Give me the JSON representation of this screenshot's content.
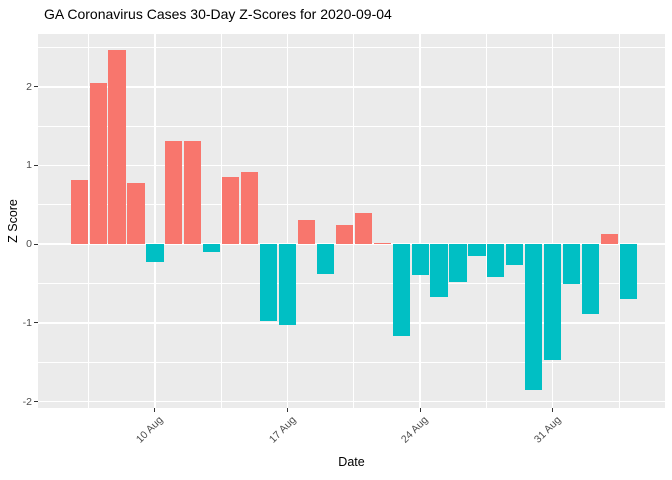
{
  "chart_data": {
    "type": "bar",
    "title": "GA Coronavirus Cases 30-Day Z-Scores for 2020-09-04",
    "xlabel": "Date",
    "ylabel": "Z Score",
    "dates": [
      "2020-08-06",
      "2020-08-07",
      "2020-08-08",
      "2020-08-09",
      "2020-08-10",
      "2020-08-11",
      "2020-08-12",
      "2020-08-13",
      "2020-08-14",
      "2020-08-15",
      "2020-08-16",
      "2020-08-17",
      "2020-08-18",
      "2020-08-19",
      "2020-08-20",
      "2020-08-21",
      "2020-08-22",
      "2020-08-23",
      "2020-08-24",
      "2020-08-25",
      "2020-08-26",
      "2020-08-27",
      "2020-08-28",
      "2020-08-29",
      "2020-08-30",
      "2020-08-31",
      "2020-09-01",
      "2020-09-02",
      "2020-09-03",
      "2020-09-04"
    ],
    "values": [
      0.81,
      2.05,
      2.47,
      0.78,
      -0.23,
      1.31,
      1.31,
      -0.1,
      0.86,
      0.92,
      -0.98,
      -1.02,
      0.31,
      -0.38,
      0.24,
      0.4,
      0.02,
      -1.17,
      -0.39,
      -0.67,
      -0.48,
      -0.15,
      -0.41,
      -0.27,
      -1.85,
      -1.47,
      -0.51,
      -0.88,
      0.13,
      -0.7
    ],
    "x_ticks": [
      {
        "index": 4,
        "label": "10 Aug"
      },
      {
        "index": 11,
        "label": "17 Aug"
      },
      {
        "index": 18,
        "label": "24 Aug"
      },
      {
        "index": 25,
        "label": "31 Aug"
      }
    ],
    "y_major_ticks": [
      -2,
      -1,
      0,
      1,
      2
    ],
    "y_minor_ticks": [
      -1.5,
      -0.5,
      0.5,
      1.5,
      2.5
    ],
    "ylim": [
      -2.08,
      2.67
    ],
    "grid": true,
    "legend": "none",
    "colors": {
      "positive": "#F8766D",
      "negative": "#00BFC4",
      "panel_background": "#EBEBEB",
      "gridline": "#FFFFFF",
      "tick_label": "#4D4D4D",
      "tick_mark": "#333333"
    }
  }
}
